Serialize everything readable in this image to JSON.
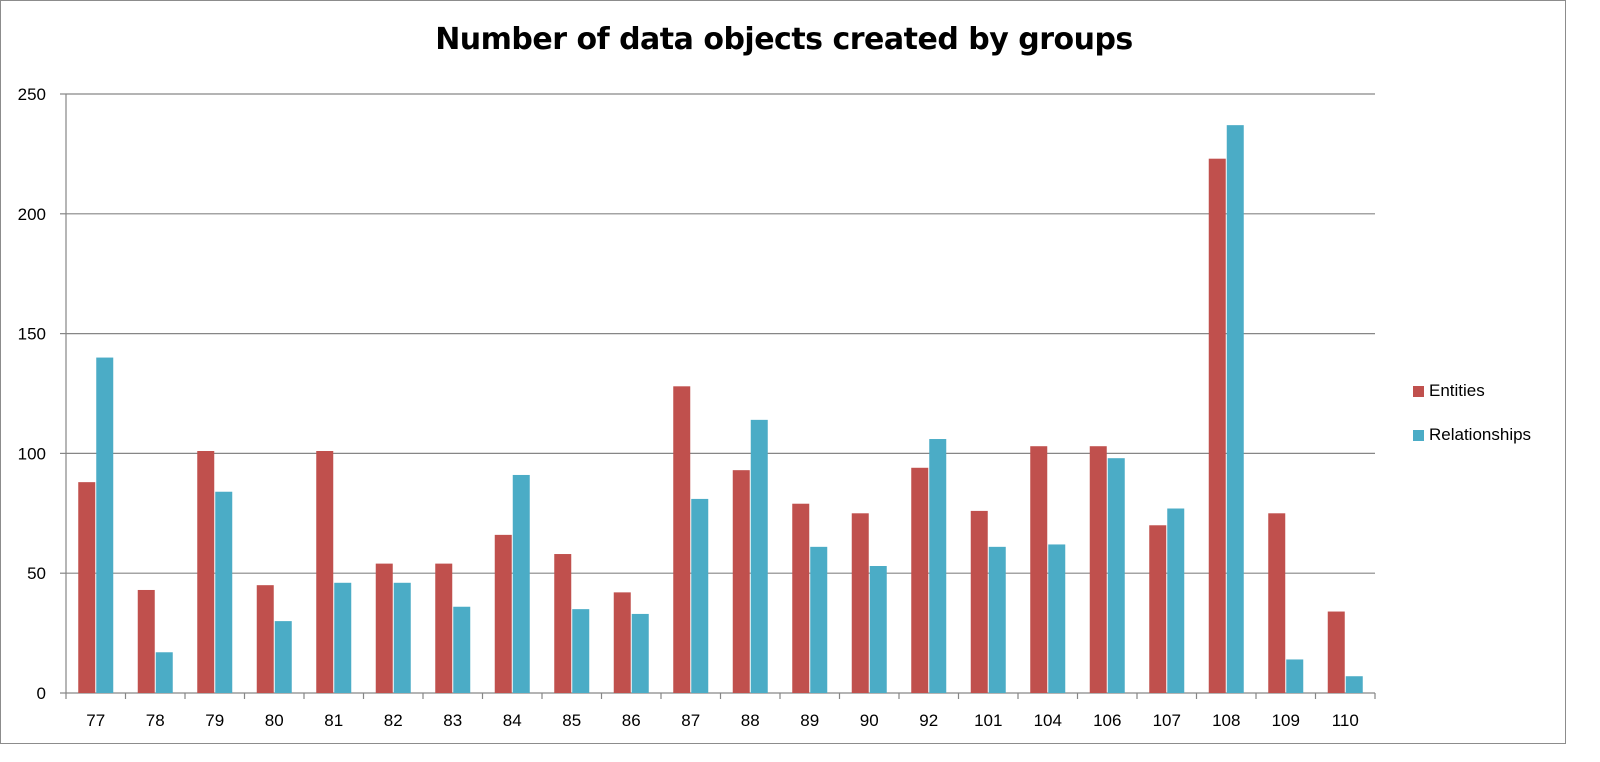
{
  "chart_data": {
    "type": "bar",
    "title": "Number of data objects created by groups",
    "xlabel": "",
    "ylabel": "",
    "ylim": [
      0,
      250
    ],
    "yticks": [
      0,
      50,
      100,
      150,
      200,
      250
    ],
    "grid": true,
    "legend_position": "right",
    "categories": [
      "77",
      "78",
      "79",
      "80",
      "81",
      "82",
      "83",
      "84",
      "85",
      "86",
      "87",
      "88",
      "89",
      "90",
      "92",
      "101",
      "104",
      "106",
      "107",
      "108",
      "109",
      "110"
    ],
    "series": [
      {
        "name": "Entities",
        "color": "#C0504D",
        "values": [
          88,
          43,
          101,
          45,
          101,
          54,
          54,
          66,
          58,
          42,
          128,
          93,
          79,
          75,
          94,
          76,
          103,
          103,
          70,
          223,
          75,
          34
        ]
      },
      {
        "name": "Relationships",
        "color": "#4BACC6",
        "values": [
          140,
          17,
          84,
          30,
          46,
          46,
          36,
          91,
          35,
          33,
          81,
          114,
          61,
          53,
          106,
          61,
          62,
          98,
          77,
          237,
          14,
          7
        ]
      }
    ]
  }
}
